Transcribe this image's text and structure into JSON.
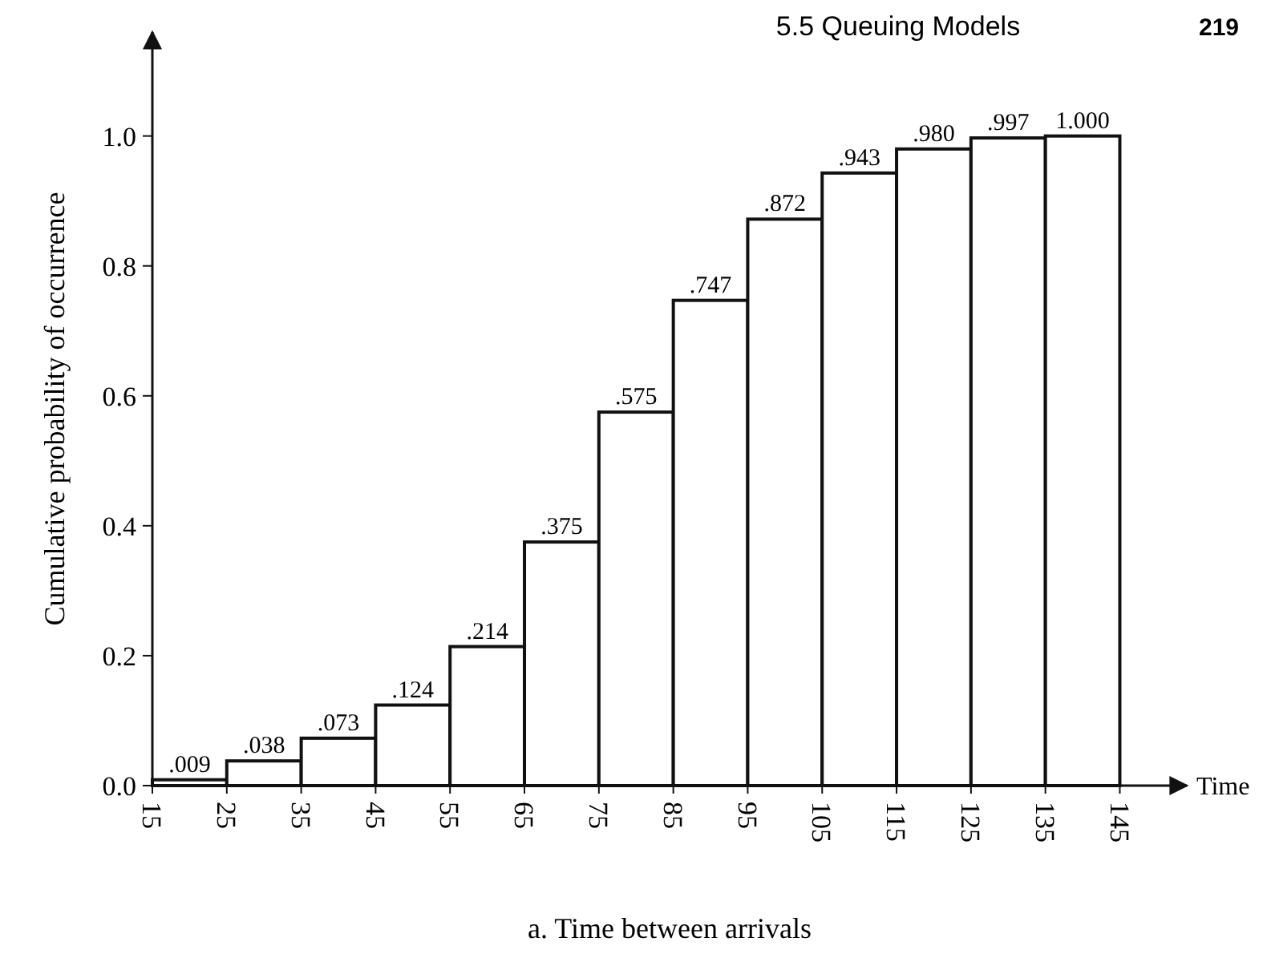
{
  "chart_data": {
    "type": "histogram",
    "xlabel": "Time",
    "ylabel": "Cumulative probability of occurrence",
    "bins": [
      15,
      25,
      35,
      45,
      55,
      65,
      75,
      85,
      95,
      105,
      115,
      125,
      135,
      145
    ],
    "values": [
      0.009,
      0.038,
      0.073,
      0.124,
      0.214,
      0.375,
      0.575,
      0.747,
      0.872,
      0.943,
      0.98,
      0.997,
      1.0
    ],
    "value_labels": [
      ".009",
      ".038",
      ".073",
      ".124",
      ".214",
      ".375",
      ".575",
      ".747",
      ".872",
      ".943",
      ".980",
      ".997",
      "1.000"
    ],
    "color": "#ffffff",
    "xlim": [
      15,
      154
    ],
    "xticks": [
      15,
      25,
      35,
      45,
      55,
      65,
      75,
      85,
      95,
      105,
      115,
      125,
      135,
      145
    ],
    "ylim": [
      0,
      1.16
    ],
    "yticks": [
      {
        "value": 0,
        "label": "0.0"
      },
      {
        "value": 0.2,
        "label": "0.2"
      },
      {
        "value": 0.4,
        "label": "0.4"
      },
      {
        "value": 0.6,
        "label": "0.6"
      },
      {
        "value": 0.8,
        "label": "0.8"
      },
      {
        "value": 1,
        "label": "1.0"
      }
    ],
    "grid": false,
    "annotations": [
      "a. Time between arrivals",
      "5.5 Queuing Models",
      "219"
    ]
  }
}
